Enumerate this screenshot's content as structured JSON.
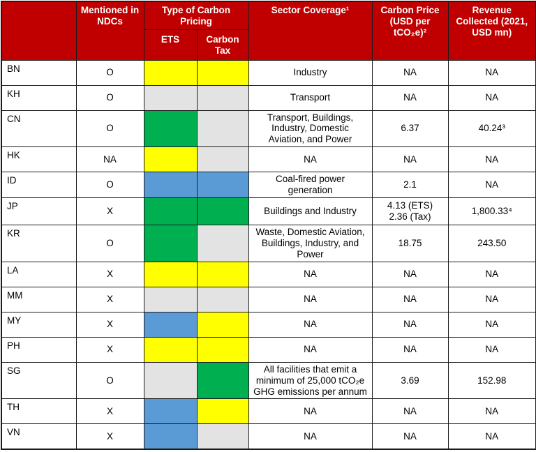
{
  "colors": {
    "header_red": "#C00000",
    "yellow": "#FFFF00",
    "gray": "#E3E3E3",
    "green": "#00B050",
    "blue": "#5B9BD5"
  },
  "table": {
    "header": {
      "country": "",
      "ndc": "Mentioned in NDCs",
      "type_of_carbon_pricing": "Type of Carbon Pricing",
      "ets": "ETS",
      "carbon_tax": "Carbon Tax",
      "sector": "Sector Coverage¹",
      "price": "Carbon Price (USD per tCO₂e)²",
      "revenue": "Revenue Collected (2021, USD mn)"
    },
    "rows": [
      {
        "code": "BN",
        "ndc": "O",
        "ets": "yellow",
        "tax": "yellow",
        "sector": "Industry",
        "price": "NA",
        "revenue": "NA"
      },
      {
        "code": "KH",
        "ndc": "O",
        "ets": "gray",
        "tax": "gray",
        "sector": "Transport",
        "price": "NA",
        "revenue": "NA"
      },
      {
        "code": "CN",
        "ndc": "O",
        "ets": "green",
        "tax": "gray",
        "sector": "Transport, Buildings, Industry, Domestic Aviation, and Power",
        "price": "6.37",
        "revenue": "40.24³"
      },
      {
        "code": "HK",
        "ndc": "NA",
        "ets": "yellow",
        "tax": "gray",
        "sector": "NA",
        "price": "NA",
        "revenue": "NA"
      },
      {
        "code": "ID",
        "ndc": "O",
        "ets": "blue",
        "tax": "blue",
        "sector": "Coal-fired power generation",
        "price": "2.1",
        "revenue": "NA"
      },
      {
        "code": "JP",
        "ndc": "X",
        "ets": "green",
        "tax": "green",
        "sector": "Buildings and Industry",
        "price": "4.13 (ETS)\n2.36 (Tax)",
        "revenue": "1,800.33⁴"
      },
      {
        "code": "KR",
        "ndc": "O",
        "ets": "green",
        "tax": "gray",
        "sector": "Waste, Domestic Aviation, Buildings, Industry, and Power",
        "price": "18.75",
        "revenue": "243.50"
      },
      {
        "code": "LA",
        "ndc": "X",
        "ets": "yellow",
        "tax": "yellow",
        "sector": "NA",
        "price": "NA",
        "revenue": "NA"
      },
      {
        "code": "MM",
        "ndc": "X",
        "ets": "gray",
        "tax": "gray",
        "sector": "NA",
        "price": "NA",
        "revenue": "NA"
      },
      {
        "code": "MY",
        "ndc": "X",
        "ets": "blue",
        "tax": "yellow",
        "sector": "NA",
        "price": "NA",
        "revenue": "NA"
      },
      {
        "code": "PH",
        "ndc": "X",
        "ets": "yellow",
        "tax": "yellow",
        "sector": "NA",
        "price": "NA",
        "revenue": "NA"
      },
      {
        "code": "SG",
        "ndc": "O",
        "ets": "gray",
        "tax": "green",
        "sector": "All facilities that emit a minimum of 25,000 tCO₂e GHG emissions per annum",
        "price": "3.69",
        "revenue": "152.98"
      },
      {
        "code": "TH",
        "ndc": "X",
        "ets": "blue",
        "tax": "yellow",
        "sector": "NA",
        "price": "NA",
        "revenue": "NA"
      },
      {
        "code": "VN",
        "ndc": "X",
        "ets": "blue",
        "tax": "gray",
        "sector": "NA",
        "price": "NA",
        "revenue": "NA"
      }
    ]
  }
}
